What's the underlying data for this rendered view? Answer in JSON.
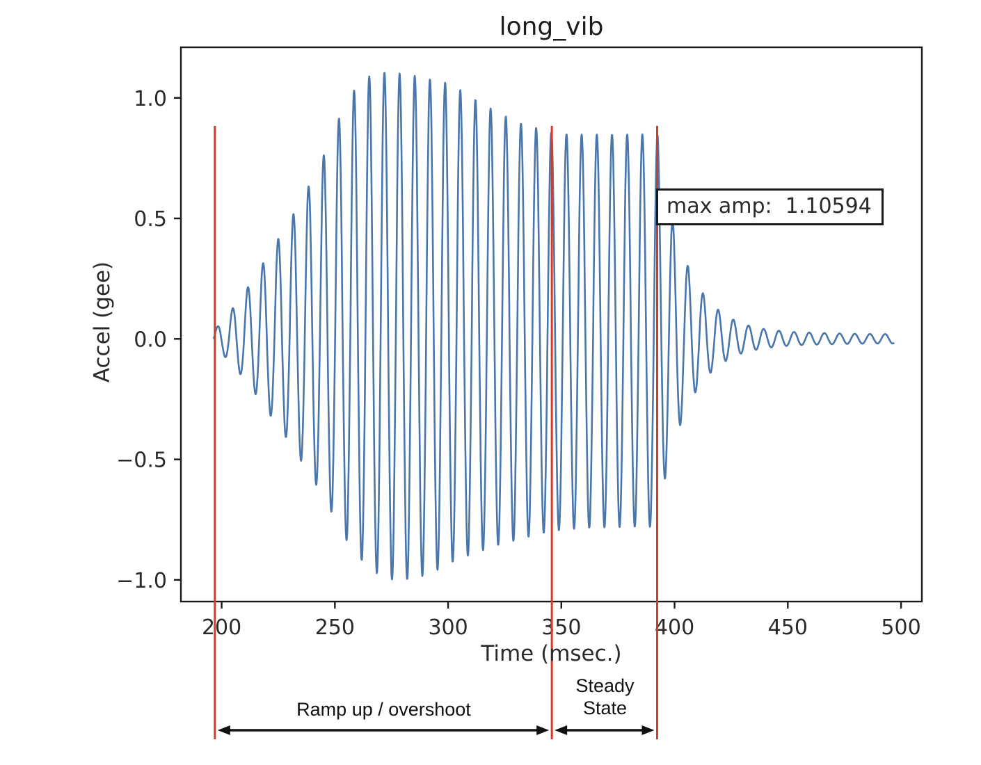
{
  "page": {
    "background": "#ffffff"
  },
  "chart_data": {
    "type": "line",
    "title": "long_vib",
    "xlabel": "Time (msec.)",
    "ylabel": "Accel (gee)",
    "xlim": [
      182,
      509.2
    ],
    "ylim": [
      -1.09,
      1.21
    ],
    "xticks": [
      200,
      250,
      300,
      350,
      400,
      450,
      500
    ],
    "yticks": [
      1.0,
      0.5,
      0.0,
      -0.5,
      -1.0
    ],
    "ytick_labels": [
      "1.0",
      "0.5",
      "0.0",
      "−0.5",
      "−1.0"
    ],
    "grid": false,
    "line_color": "#3f6fa8",
    "spine_color": "#1a1a1a",
    "text_color": "#2a2a2a",
    "waveform": {
      "start_msec": 196.5,
      "end_msec": 497,
      "period_msec": 6.7,
      "max_amplitude": 1.10594,
      "steady_amplitude_pos": 0.85,
      "steady_amplitude_neg": -0.78,
      "upper_envelope": [
        [
          197,
          0.04
        ],
        [
          200,
          0.07
        ],
        [
          206,
          0.14
        ],
        [
          212,
          0.22
        ],
        [
          218,
          0.31
        ],
        [
          224,
          0.4
        ],
        [
          230,
          0.49
        ],
        [
          236,
          0.59
        ],
        [
          242,
          0.7
        ],
        [
          248,
          0.82
        ],
        [
          252,
          0.92
        ],
        [
          256,
          1.0
        ],
        [
          260,
          1.05
        ],
        [
          264,
          1.085
        ],
        [
          268,
          1.1
        ],
        [
          272,
          1.106
        ],
        [
          276,
          1.104
        ],
        [
          280,
          1.1
        ],
        [
          285,
          1.092
        ],
        [
          290,
          1.082
        ],
        [
          295,
          1.072
        ],
        [
          300,
          1.06
        ],
        [
          305,
          1.035
        ],
        [
          310,
          1.005
        ],
        [
          315,
          0.975
        ],
        [
          320,
          0.95
        ],
        [
          325,
          0.925
        ],
        [
          330,
          0.902
        ],
        [
          335,
          0.885
        ],
        [
          340,
          0.872
        ],
        [
          345,
          0.858
        ],
        [
          350,
          0.85
        ],
        [
          360,
          0.848
        ],
        [
          370,
          0.848
        ],
        [
          380,
          0.848
        ],
        [
          390,
          0.85
        ],
        [
          392.5,
          0.85
        ],
        [
          394,
          0.72
        ],
        [
          396,
          0.62
        ],
        [
          398,
          0.53
        ],
        [
          400,
          0.46
        ],
        [
          402,
          0.4
        ],
        [
          405,
          0.32
        ],
        [
          408,
          0.26
        ],
        [
          411,
          0.21
        ],
        [
          414,
          0.17
        ],
        [
          417,
          0.14
        ],
        [
          420,
          0.115
        ],
        [
          424,
          0.09
        ],
        [
          428,
          0.07
        ],
        [
          432,
          0.057
        ],
        [
          436,
          0.048
        ],
        [
          440,
          0.04
        ],
        [
          446,
          0.034
        ],
        [
          452,
          0.029
        ],
        [
          460,
          0.026
        ],
        [
          470,
          0.023
        ],
        [
          480,
          0.021
        ],
        [
          490,
          0.02
        ],
        [
          497,
          0.02
        ]
      ],
      "lower_envelope": [
        [
          197,
          0.04
        ],
        [
          200,
          0.06
        ],
        [
          206,
          0.12
        ],
        [
          212,
          0.19
        ],
        [
          218,
          0.27
        ],
        [
          224,
          0.35
        ],
        [
          230,
          0.43
        ],
        [
          236,
          0.52
        ],
        [
          242,
          0.61
        ],
        [
          248,
          0.71
        ],
        [
          252,
          0.78
        ],
        [
          256,
          0.85
        ],
        [
          260,
          0.9
        ],
        [
          264,
          0.94
        ],
        [
          268,
          0.97
        ],
        [
          272,
          0.99
        ],
        [
          276,
          1.0
        ],
        [
          280,
          1.0
        ],
        [
          285,
          0.995
        ],
        [
          290,
          0.98
        ],
        [
          295,
          0.96
        ],
        [
          300,
          0.935
        ],
        [
          305,
          0.912
        ],
        [
          310,
          0.895
        ],
        [
          315,
          0.878
        ],
        [
          320,
          0.862
        ],
        [
          325,
          0.848
        ],
        [
          330,
          0.835
        ],
        [
          335,
          0.822
        ],
        [
          340,
          0.81
        ],
        [
          345,
          0.8
        ],
        [
          350,
          0.792
        ],
        [
          360,
          0.785
        ],
        [
          370,
          0.782
        ],
        [
          380,
          0.78
        ],
        [
          390,
          0.78
        ],
        [
          392.5,
          0.78
        ],
        [
          394,
          0.66
        ],
        [
          396,
          0.57
        ],
        [
          398,
          0.49
        ],
        [
          400,
          0.42
        ],
        [
          402,
          0.37
        ],
        [
          405,
          0.295
        ],
        [
          408,
          0.24
        ],
        [
          411,
          0.195
        ],
        [
          414,
          0.158
        ],
        [
          417,
          0.13
        ],
        [
          420,
          0.107
        ],
        [
          424,
          0.083
        ],
        [
          428,
          0.065
        ],
        [
          432,
          0.053
        ],
        [
          436,
          0.045
        ],
        [
          440,
          0.038
        ],
        [
          446,
          0.032
        ],
        [
          452,
          0.027
        ],
        [
          460,
          0.024
        ],
        [
          470,
          0.022
        ],
        [
          480,
          0.02
        ],
        [
          490,
          0.019
        ],
        [
          497,
          0.019
        ]
      ]
    },
    "vlines": {
      "color": "#cf3d2a",
      "times": [
        197,
        345.8,
        392.3
      ]
    },
    "annotation_box": {
      "text": "max amp:  1.10594",
      "value": 1.10594
    },
    "region_labels": [
      {
        "label": "Ramp up / overshoot",
        "lines": [
          "Ramp up / overshoot"
        ],
        "from_msec": 197,
        "to_msec": 345.8
      },
      {
        "label": "Steady State",
        "lines": [
          "Steady",
          "State"
        ],
        "from_msec": 345.8,
        "to_msec": 392.3
      }
    ],
    "arrow_color": "#111111"
  }
}
